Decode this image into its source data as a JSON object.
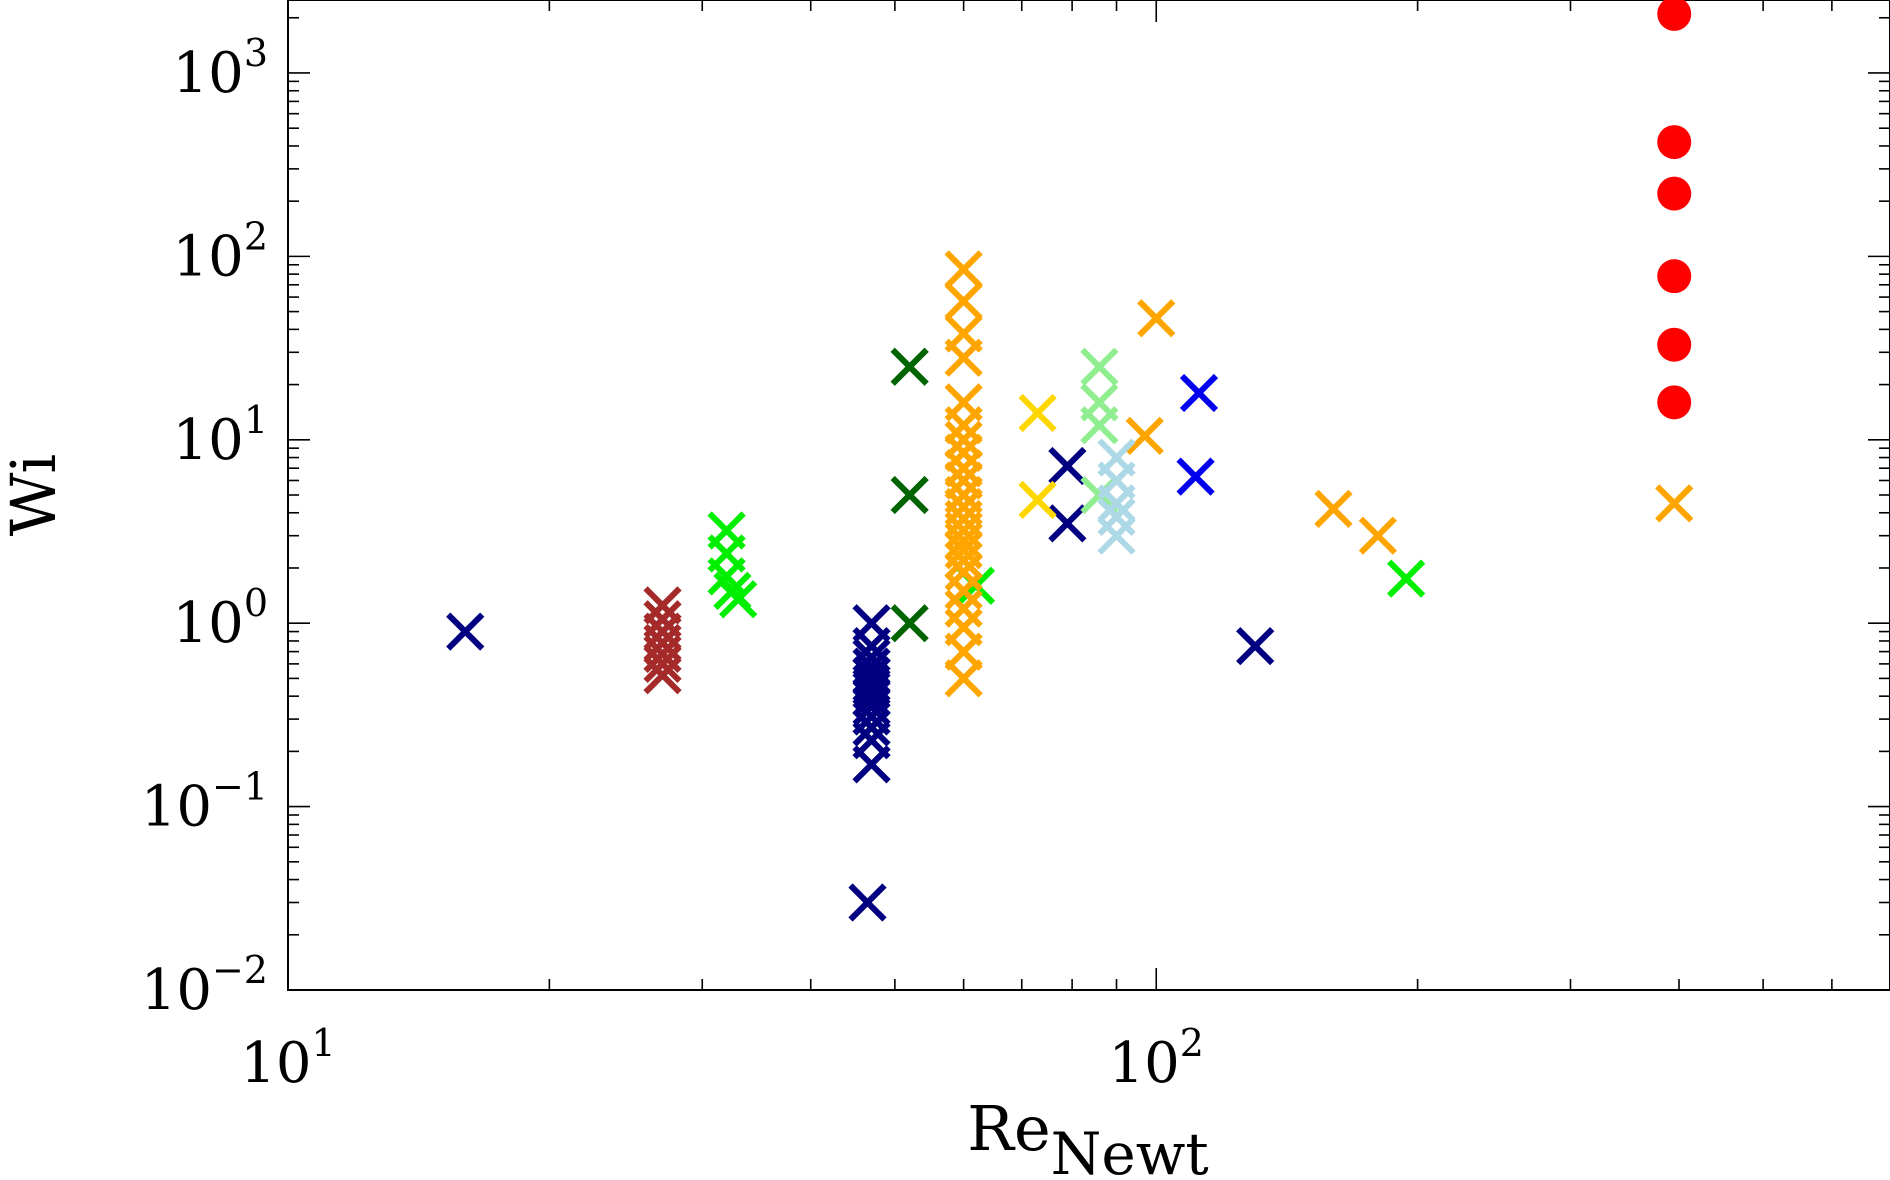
{
  "chart_data": {
    "type": "scatter",
    "title": "",
    "xlabel": {
      "base": "Re",
      "sub": "Newt"
    },
    "ylabel": "Wi",
    "xscale": "log",
    "yscale": "log",
    "xlim": [
      10,
      700
    ],
    "ylim": [
      0.01,
      2500
    ],
    "grid": false,
    "legend": "none",
    "x_ticks": [
      {
        "value": 10,
        "base": "10",
        "exp": "1"
      },
      {
        "value": 100,
        "base": "10",
        "exp": "2"
      }
    ],
    "y_ticks": [
      {
        "value": 0.01,
        "base": "10",
        "exp": "−2"
      },
      {
        "value": 0.1,
        "base": "10",
        "exp": "−1"
      },
      {
        "value": 1,
        "base": "10",
        "exp": "0"
      },
      {
        "value": 10,
        "base": "10",
        "exp": "1"
      },
      {
        "value": 100,
        "base": "10",
        "exp": "2"
      },
      {
        "value": 1000,
        "base": "10",
        "exp": "3"
      }
    ],
    "series": [
      {
        "color": "#000080",
        "marker": "x",
        "points": [
          [
            16,
            0.9
          ],
          [
            47,
            1.0
          ],
          [
            47,
            0.75
          ],
          [
            47,
            0.65
          ],
          [
            47,
            0.58
          ],
          [
            47,
            0.52
          ],
          [
            47,
            0.47
          ],
          [
            47,
            0.43
          ],
          [
            47,
            0.39
          ],
          [
            47,
            0.35
          ],
          [
            47,
            0.31
          ],
          [
            47,
            0.27
          ],
          [
            47,
            0.23
          ],
          [
            47,
            0.17
          ],
          [
            46.5,
            0.03
          ],
          [
            79,
            7.2
          ],
          [
            79,
            3.5
          ],
          [
            130,
            0.75
          ]
        ]
      },
      {
        "color": "#a52a2a",
        "marker": "x",
        "points": [
          [
            27,
            1.25
          ],
          [
            27,
            1.05
          ],
          [
            27,
            0.9
          ],
          [
            27,
            0.78
          ],
          [
            27,
            0.68
          ],
          [
            27,
            0.6
          ],
          [
            27,
            0.52
          ]
        ]
      },
      {
        "color": "#00ee00",
        "marker": "x",
        "points": [
          [
            32,
            3.2
          ],
          [
            32,
            2.4
          ],
          [
            32,
            1.8
          ],
          [
            32.5,
            1.5
          ],
          [
            33,
            1.35
          ],
          [
            62,
            1.6
          ],
          [
            194,
            1.75
          ]
        ]
      },
      {
        "color": "#006400",
        "marker": "x",
        "points": [
          [
            52,
            25
          ],
          [
            52,
            5
          ],
          [
            52,
            1.0
          ]
        ]
      },
      {
        "color": "#ffa500",
        "marker": "x",
        "points": [
          [
            60,
            85
          ],
          [
            60,
            57
          ],
          [
            60,
            38
          ],
          [
            60,
            28
          ],
          [
            60,
            16
          ],
          [
            60,
            12
          ],
          [
            60,
            10
          ],
          [
            60,
            8.5
          ],
          [
            60,
            7
          ],
          [
            60,
            6
          ],
          [
            60,
            5
          ],
          [
            60,
            4.3
          ],
          [
            60,
            3.7
          ],
          [
            60,
            3.2
          ],
          [
            60,
            2.8
          ],
          [
            60,
            2.5
          ],
          [
            60,
            2.2
          ],
          [
            60,
            1.9
          ],
          [
            60,
            1.5
          ],
          [
            60,
            1.2
          ],
          [
            60,
            0.95
          ],
          [
            60,
            0.7
          ],
          [
            60,
            0.5
          ],
          [
            100,
            46
          ],
          [
            97,
            10.5
          ],
          [
            160,
            4.2
          ],
          [
            180,
            3.0
          ],
          [
            395,
            4.5
          ]
        ]
      },
      {
        "color": "#ffd700",
        "marker": "x",
        "points": [
          [
            73,
            14
          ],
          [
            73,
            4.7
          ]
        ]
      },
      {
        "color": "#90ee90",
        "marker": "x",
        "points": [
          [
            86,
            25
          ],
          [
            86,
            16
          ],
          [
            86,
            12
          ],
          [
            86,
            5
          ]
        ]
      },
      {
        "color": "#add8e6",
        "marker": "x",
        "points": [
          [
            90,
            8
          ],
          [
            90,
            6
          ],
          [
            90,
            4.5
          ],
          [
            90,
            3.8
          ],
          [
            90,
            3.0
          ]
        ]
      },
      {
        "color": "#0000ee",
        "marker": "x",
        "points": [
          [
            112,
            18
          ],
          [
            111,
            6.3
          ]
        ]
      },
      {
        "color": "#ff0000",
        "marker": "circle",
        "points": [
          [
            395,
            2100
          ],
          [
            395,
            420
          ],
          [
            395,
            220
          ],
          [
            395,
            78
          ],
          [
            395,
            33
          ],
          [
            395,
            16
          ]
        ]
      }
    ]
  }
}
